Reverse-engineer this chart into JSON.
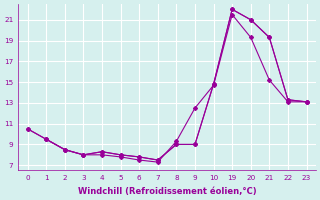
{
  "xlabel": "Windchill (Refroidissement éolien,°C)",
  "bg_color": "#d6f0ee",
  "line_color": "#990099",
  "grid_color": "#ffffff",
  "xtick_values": [
    0,
    1,
    2,
    3,
    4,
    5,
    6,
    7,
    8,
    9,
    10,
    19,
    20,
    21,
    22,
    23
  ],
  "yticks": [
    7,
    9,
    11,
    13,
    15,
    17,
    19,
    21
  ],
  "ylim": [
    6.5,
    22.5
  ],
  "series": [
    {
      "x_idx": [
        0,
        1,
        2,
        3,
        4,
        5,
        6,
        7,
        8,
        9,
        10,
        11,
        12,
        13,
        14,
        15
      ],
      "y": [
        10.5,
        9.5,
        8.5,
        8.0,
        8.3,
        8.0,
        7.8,
        7.5,
        9.0,
        9.0,
        14.8,
        22.0,
        21.0,
        19.3,
        13.3,
        13.1
      ]
    },
    {
      "x_idx": [
        1,
        2,
        3,
        4,
        5,
        6,
        7,
        8,
        9,
        10,
        11,
        12,
        13,
        14,
        15
      ],
      "y": [
        9.5,
        8.5,
        8.0,
        8.3,
        8.0,
        7.8,
        7.5,
        9.0,
        9.0,
        14.8,
        22.0,
        21.0,
        19.3,
        13.3,
        13.1
      ]
    },
    {
      "x_idx": [
        0,
        1,
        2,
        3,
        4,
        5,
        6,
        7,
        8,
        9,
        10,
        11,
        12,
        13,
        14,
        15
      ],
      "y": [
        10.5,
        9.5,
        8.5,
        8.0,
        8.0,
        7.8,
        7.5,
        7.3,
        9.3,
        12.5,
        14.7,
        21.5,
        19.3,
        15.2,
        13.1,
        13.1
      ]
    }
  ],
  "tick_fontsize": 5.2,
  "label_fontsize": 6.0
}
